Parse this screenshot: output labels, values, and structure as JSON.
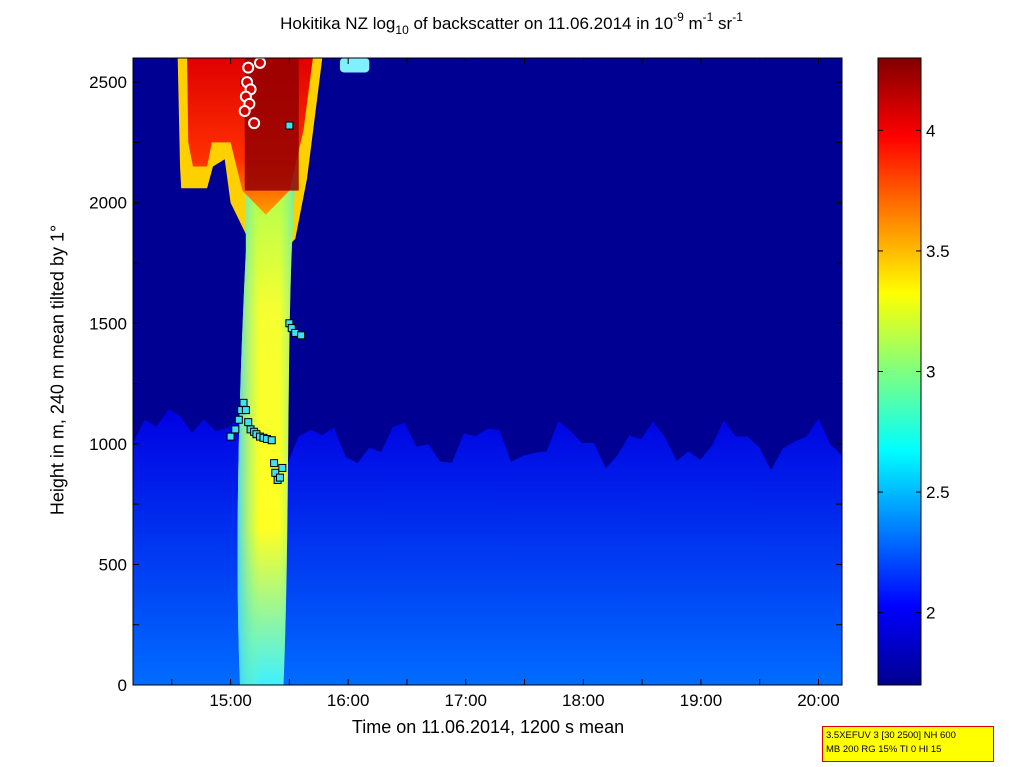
{
  "chart_data": {
    "type": "heatmap",
    "title": {
      "prefix": "Hokitika NZ log",
      "sub": "10",
      "middle": " of backscatter on 11.06.2014 in 10",
      "exp1": "-9",
      "unit1": " m",
      "exp2": "-1",
      "unit2": " sr",
      "exp3": "-1"
    },
    "xlabel": "Time on 11.06.2014, 1200 s mean",
    "ylabel": "Height in m, 240 m mean tilted by 1°",
    "x_range_hours": [
      14.17,
      20.2
    ],
    "y_range_m": [
      0,
      2600
    ],
    "x_ticks": [
      {
        "value": 15,
        "label": "15:00"
      },
      {
        "value": 16,
        "label": "16:00"
      },
      {
        "value": 17,
        "label": "17:00"
      },
      {
        "value": 18,
        "label": "18:00"
      },
      {
        "value": 19,
        "label": "19:00"
      },
      {
        "value": 20,
        "label": "20:00"
      }
    ],
    "y_ticks": [
      {
        "value": 0,
        "label": "0"
      },
      {
        "value": 500,
        "label": "500"
      },
      {
        "value": 1000,
        "label": "1000"
      },
      {
        "value": 1500,
        "label": "1500"
      },
      {
        "value": 2000,
        "label": "2000"
      },
      {
        "value": 2500,
        "label": "2500"
      }
    ],
    "colorbar": {
      "range": [
        1.7,
        4.3
      ],
      "ticks": [
        {
          "value": 2,
          "label": "2"
        },
        {
          "value": 2.5,
          "label": "2.5"
        },
        {
          "value": 3,
          "label": "3"
        },
        {
          "value": 3.5,
          "label": "3.5"
        },
        {
          "value": 4,
          "label": "4"
        }
      ],
      "colormap": "jet"
    },
    "features": {
      "background_level": 1.75,
      "boundary_layer": {
        "top_m": 1000,
        "level_bottom": 2.3,
        "level_top": 1.95
      },
      "plume": {
        "time_start": 15.03,
        "time_end": 15.6,
        "center": 15.32,
        "level": 3.3
      },
      "upper_cloud": {
        "time_start": 14.55,
        "time_end": 15.8,
        "base_m": 2050,
        "top_m": 2600,
        "level": 4.2
      }
    },
    "markers": {
      "cloud_base_squares": [
        [
          15.0,
          1030
        ],
        [
          15.04,
          1060
        ],
        [
          15.07,
          1100
        ],
        [
          15.09,
          1140
        ],
        [
          15.11,
          1170
        ],
        [
          15.13,
          1140
        ],
        [
          15.15,
          1090
        ],
        [
          15.17,
          1060
        ],
        [
          15.2,
          1050
        ],
        [
          15.22,
          1040
        ],
        [
          15.25,
          1030
        ],
        [
          15.28,
          1025
        ],
        [
          15.31,
          1020
        ],
        [
          15.35,
          1015
        ],
        [
          15.37,
          920
        ],
        [
          15.38,
          880
        ],
        [
          15.4,
          850
        ],
        [
          15.42,
          860
        ],
        [
          15.44,
          900
        ],
        [
          15.5,
          1500
        ],
        [
          15.52,
          1480
        ],
        [
          15.55,
          1460
        ],
        [
          15.6,
          1450
        ],
        [
          15.5,
          2320
        ],
        [
          15.12,
          2500
        ]
      ],
      "circles": [
        [
          15.15,
          2560
        ],
        [
          15.25,
          2580
        ],
        [
          15.14,
          2500
        ],
        [
          15.17,
          2470
        ],
        [
          15.13,
          2440
        ],
        [
          15.16,
          2410
        ],
        [
          15.12,
          2380
        ],
        [
          15.2,
          2330
        ]
      ]
    },
    "colors": {
      "axis": "#000000",
      "marker_edge_square": "#000000",
      "marker_fill_square": "#40e0f0",
      "marker_circle_edge": "#ffffff",
      "marker_circle_fill": "#d00000"
    }
  },
  "info_box": {
    "line1": "3.5XEFUV 3 [30 2500] NH 600",
    "line2": "MB 200 RG 15% TI 0 HI 15"
  }
}
